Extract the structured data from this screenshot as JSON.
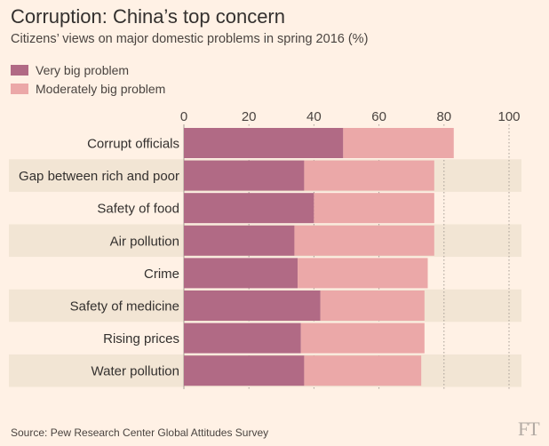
{
  "colors": {
    "background": "#fff1e5",
    "band": "#f2e5d4",
    "very_big": "#b16a85",
    "moderately_big": "#eba8a8",
    "grid": "#a69d95"
  },
  "chart_data": {
    "type": "bar",
    "orientation": "horizontal",
    "stacked": true,
    "title": "Corruption: China’s top concern",
    "subtitle": "Citizens’ views on major domestic problems in spring 2016 (%)",
    "categories": [
      "Corrupt officials",
      "Gap between rich and poor",
      "Safety of food",
      "Air pollution",
      "Crime",
      "Safety of medicine",
      "Rising prices",
      "Water pollution"
    ],
    "series": [
      {
        "name": "Very big problem",
        "color": "#b16a85",
        "values": [
          49,
          37,
          40,
          34,
          35,
          42,
          36,
          37
        ]
      },
      {
        "name": "Moderately big problem",
        "color": "#eba8a8",
        "values": [
          34,
          40,
          37,
          43,
          40,
          32,
          38,
          36
        ]
      }
    ],
    "xlim": [
      0,
      100
    ],
    "xticks": [
      "0",
      "20",
      "40",
      "60",
      "80",
      "100"
    ],
    "legend_position": "top-left",
    "grid": true
  },
  "source": "Source: Pew Research Center Global Attitudes Survey",
  "logo_text": "FT"
}
